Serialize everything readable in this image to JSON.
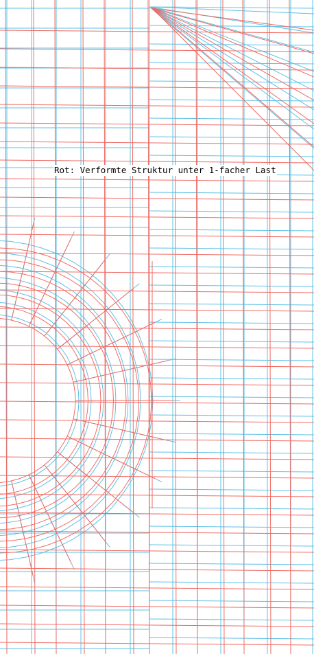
{
  "caption": "Rot: Verformte Struktur unter 1-facher Last",
  "colors": {
    "background": "#ffffff",
    "original_mesh": "#5fc0e6",
    "deformed_mesh": "#ef6b63",
    "text": "#000000"
  },
  "legend": {
    "deformed_series_color": "red",
    "original_series_color": "cyan"
  }
}
